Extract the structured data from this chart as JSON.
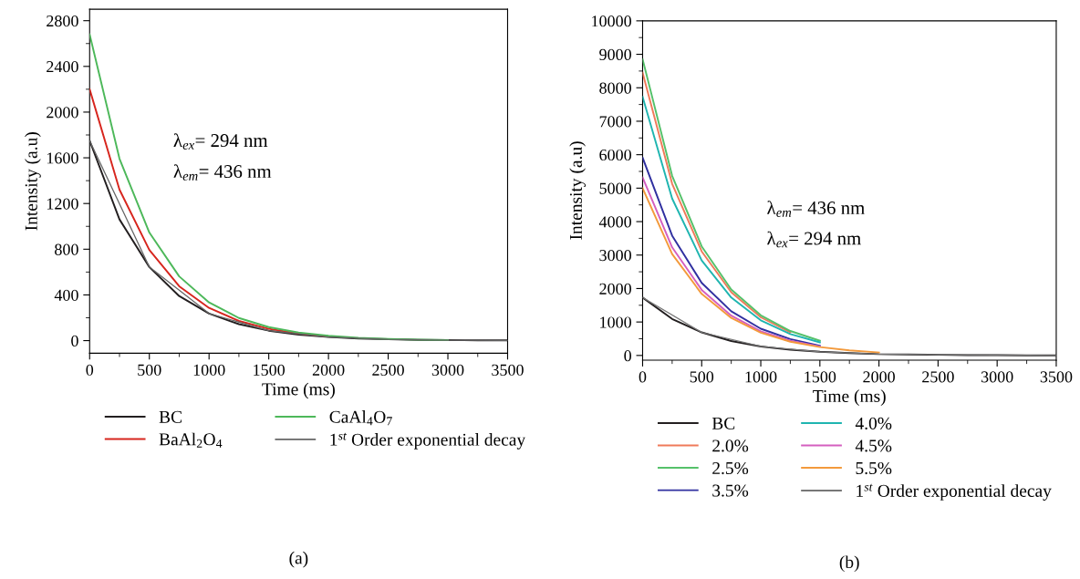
{
  "chart_data": [
    {
      "type": "line",
      "xlabel": "Time (ms)",
      "ylabel": "Intensity (a.u)",
      "xlim": [
        0,
        3500
      ],
      "ylim": [
        -110,
        2900
      ],
      "xticks": [
        0,
        500,
        1000,
        1500,
        2000,
        2500,
        3000,
        3500
      ],
      "yticks": [
        0,
        400,
        800,
        1200,
        1600,
        2000,
        2400,
        2800
      ],
      "x": [
        0,
        250,
        500,
        750,
        1000,
        1250,
        1500,
        1750,
        2000,
        2250,
        2500,
        2750,
        3000,
        3250,
        3500
      ],
      "grid": false,
      "legend": "bottom",
      "line_style": "solid",
      "marker": "none",
      "annotations": [
        "λ$_{ex}$= 294 nm",
        "λ$_{em}$= 436 nm",
        "(a)"
      ],
      "series": [
        {
          "name": "BC",
          "color": "#231f20",
          "values": [
            1750,
            1061,
            644,
            390,
            237,
            144,
            87,
            53,
            32,
            19,
            12,
            7,
            4,
            3,
            2
          ]
        },
        {
          "name": "BaAl$_{2}$O$_{4}$",
          "color": "#d7261e",
          "values": [
            2200,
            1321,
            793,
            476,
            286,
            172,
            103,
            62,
            37,
            null,
            null,
            null,
            null,
            null,
            null
          ]
        },
        {
          "name": "CaAl$_{4}$O$_{7}$",
          "color": "#4db85a",
          "values": [
            2680,
            1592,
            946,
            562,
            334,
            198,
            118,
            70,
            42,
            25,
            15,
            9,
            5,
            null,
            null
          ]
        },
        {
          "name": "1$^{st}$ Order exponential decay",
          "color": "#666666",
          "x": [
            0,
            500,
            1000,
            1500,
            2000,
            2500,
            3000,
            3500
          ],
          "values": [
            1750,
            644,
            237,
            87,
            32,
            12,
            4,
            2
          ]
        }
      ]
    },
    {
      "type": "line",
      "xlabel": "Time (ms)",
      "ylabel": "Intensity (a.u)",
      "xlim": [
        0,
        3500
      ],
      "ylim": [
        -140,
        10000
      ],
      "xticks": [
        0,
        500,
        1000,
        1500,
        2000,
        2500,
        3000,
        3500
      ],
      "yticks": [
        0,
        1000,
        2000,
        3000,
        4000,
        5000,
        6000,
        7000,
        8000,
        9000,
        10000
      ],
      "x": [
        0,
        250,
        500,
        750,
        1000,
        1250,
        1500,
        1750,
        2000,
        2250,
        2500,
        2750,
        3000,
        3250,
        3500
      ],
      "grid": false,
      "legend": "bottom",
      "line_style": "solid",
      "marker": "none",
      "annotations": [
        "λ$_{em}$= 436 nm",
        "λ$_{ex}$= 294 nm",
        "(b)"
      ],
      "series": [
        {
          "name": "BC",
          "color": "#231f20",
          "values": [
            1730,
            1090,
            690,
            430,
            270,
            170,
            110,
            70,
            40,
            30,
            20,
            10,
            10,
            0,
            0
          ]
        },
        {
          "name": "2.0%",
          "color": "#f07a5a",
          "values": [
            8450,
            5130,
            3110,
            1890,
            1140,
            690,
            null,
            null,
            null,
            null,
            null,
            null,
            null,
            null,
            null
          ]
        },
        {
          "name": "2.5%",
          "color": "#55c16a",
          "values": [
            8850,
            5370,
            3260,
            1970,
            1200,
            730,
            440,
            null,
            null,
            null,
            null,
            null,
            null,
            null,
            null
          ]
        },
        {
          "name": "3.5%",
          "color": "#3030a0",
          "values": [
            5910,
            3580,
            2170,
            1320,
            800,
            490,
            290,
            null,
            null,
            null,
            null,
            null,
            null,
            null,
            null
          ]
        },
        {
          "name": "4.0%",
          "color": "#1fb5b0",
          "values": [
            7730,
            4690,
            2840,
            1730,
            1050,
            640,
            390,
            null,
            null,
            null,
            null,
            null,
            null,
            null,
            null
          ]
        },
        {
          "name": "4.5%",
          "color": "#d45fbf",
          "values": [
            5320,
            3230,
            1960,
            1190,
            720,
            440,
            270,
            null,
            null,
            null,
            null,
            null,
            null,
            null,
            null
          ]
        },
        {
          "name": "5.5%",
          "color": "#f39a3c",
          "values": [
            5000,
            3030,
            1840,
            1120,
            680,
            410,
            250,
            150,
            90,
            null,
            null,
            null,
            null,
            null,
            null
          ]
        },
        {
          "name": "1$^{st}$ Order exponential decay",
          "color": "#777777",
          "x": [
            0,
            500,
            1000,
            1500,
            2000,
            2500,
            3000,
            3500
          ],
          "values": [
            1730,
            690,
            270,
            110,
            40,
            20,
            10,
            0
          ]
        }
      ]
    }
  ]
}
